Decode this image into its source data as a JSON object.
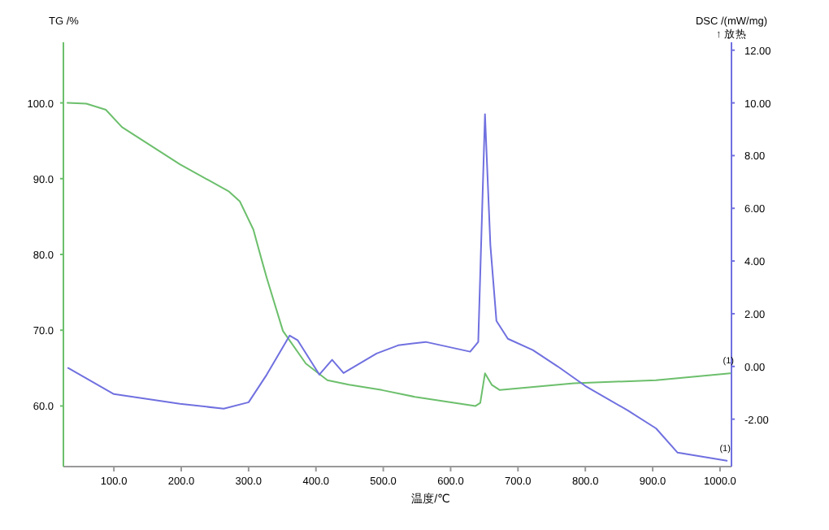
{
  "chart_data": {
    "type": "line",
    "xlabel": "温度/℃",
    "ylabel": "TG /%",
    "y2label": "DSC /(mW/mg)\n↑ 放热",
    "xlim": [
      25,
      1017
    ],
    "ylim": [
      52,
      108
    ],
    "y2lim": [
      -3.8,
      12.3
    ],
    "xticks": [
      {
        "value": 100,
        "label": "100.0"
      },
      {
        "value": 200,
        "label": "200.0"
      },
      {
        "value": 300,
        "label": "300.0"
      },
      {
        "value": 400,
        "label": "400.0"
      },
      {
        "value": 500,
        "label": "500.0"
      },
      {
        "value": 600,
        "label": "600.0"
      },
      {
        "value": 700,
        "label": "700.0"
      },
      {
        "value": 800,
        "label": "800.0"
      },
      {
        "value": 900,
        "label": "900.0"
      },
      {
        "value": 1000,
        "label": "1000.0"
      }
    ],
    "yticks": [
      {
        "value": 60,
        "label": "60.0"
      },
      {
        "value": 70,
        "label": "70.0"
      },
      {
        "value": 80,
        "label": "80.0"
      },
      {
        "value": 90,
        "label": "90.0"
      },
      {
        "value": 100,
        "label": "100.0"
      }
    ],
    "y2ticks": [
      {
        "value": -2,
        "label": "-2.00"
      },
      {
        "value": 0,
        "label": "0.00"
      },
      {
        "value": 2,
        "label": "2.00"
      },
      {
        "value": 4,
        "label": "4.00"
      },
      {
        "value": 6,
        "label": "6.00"
      },
      {
        "value": 8,
        "label": "8.00"
      },
      {
        "value": 10,
        "label": "10.00"
      },
      {
        "value": 12,
        "label": "12.00"
      }
    ],
    "series": [
      {
        "color": "#6cbf6c",
        "axis": "y",
        "x": [
          31,
          59,
          88,
          112,
          198,
          271,
          287,
          307,
          320,
          327,
          351,
          385,
          417,
          449,
          498,
          547,
          637,
          644,
          651,
          661,
          673,
          783,
          905,
          1015
        ],
        "values": [
          100.0,
          99.9,
          99.1,
          96.8,
          91.9,
          88.3,
          87.0,
          83.3,
          79.1,
          76.9,
          69.9,
          65.6,
          63.4,
          62.8,
          62.1,
          61.2,
          60.0,
          60.4,
          64.3,
          62.8,
          62.1,
          63.0,
          63.4,
          64.3
        ]
      },
      {
        "color": "#7070e0",
        "axis": "y2",
        "x": [
          32,
          100,
          198,
          263,
          300,
          327,
          361,
          373,
          405,
          424,
          441,
          490,
          522,
          563,
          629,
          641,
          651,
          659,
          668,
          685,
          722,
          759,
          800,
          863,
          905,
          937,
          1010
        ],
        "values": [
          -0.06,
          -1.05,
          -1.42,
          -1.6,
          -1.36,
          -0.31,
          1.17,
          0.99,
          -0.31,
          0.25,
          -0.25,
          0.49,
          0.8,
          0.93,
          0.56,
          0.93,
          9.57,
          4.6,
          1.73,
          1.05,
          0.62,
          0.0,
          -0.74,
          -1.67,
          -2.35,
          -3.27,
          -3.58
        ]
      }
    ],
    "annotations": [
      "(1)",
      "(1)"
    ]
  }
}
